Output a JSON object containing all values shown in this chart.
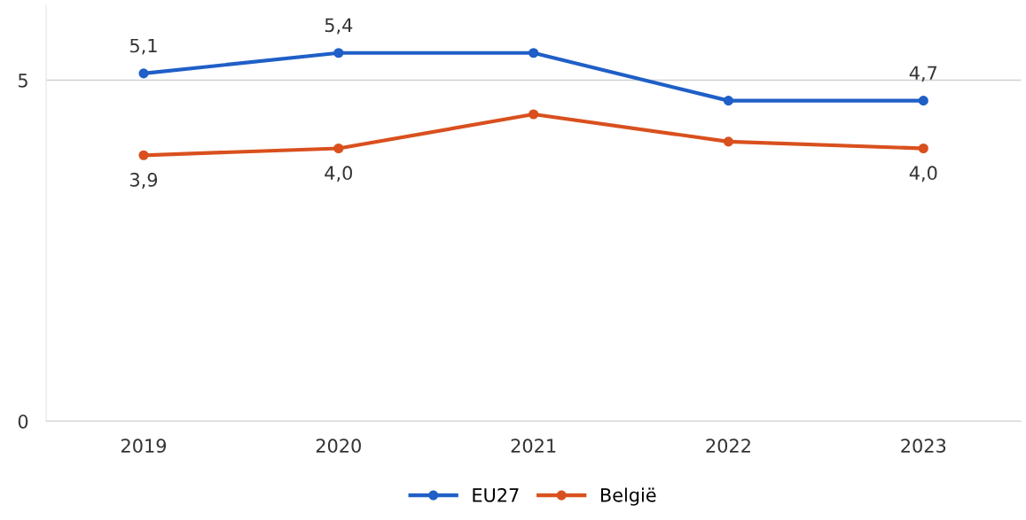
{
  "chart_data": {
    "type": "line",
    "categories": [
      "2019",
      "2020",
      "2021",
      "2022",
      "2023"
    ],
    "series": [
      {
        "name": "EU27",
        "color": "#1f5fc7",
        "values": [
          5.1,
          5.4,
          5.4,
          4.7,
          4.7
        ],
        "value_labels": [
          "5,1",
          "5,4",
          null,
          null,
          "4,7"
        ]
      },
      {
        "name": "België",
        "color": "#d9501e",
        "values": [
          3.9,
          4.0,
          4.5,
          4.1,
          4.0
        ],
        "value_labels": [
          "3,9",
          "4,0",
          null,
          null,
          "4,0"
        ]
      }
    ],
    "ylim": [
      0,
      6.1
    ],
    "yticks": [
      0,
      5
    ],
    "grid": "y",
    "legend": "bottom",
    "marker": "circle",
    "line_style": "solid"
  }
}
